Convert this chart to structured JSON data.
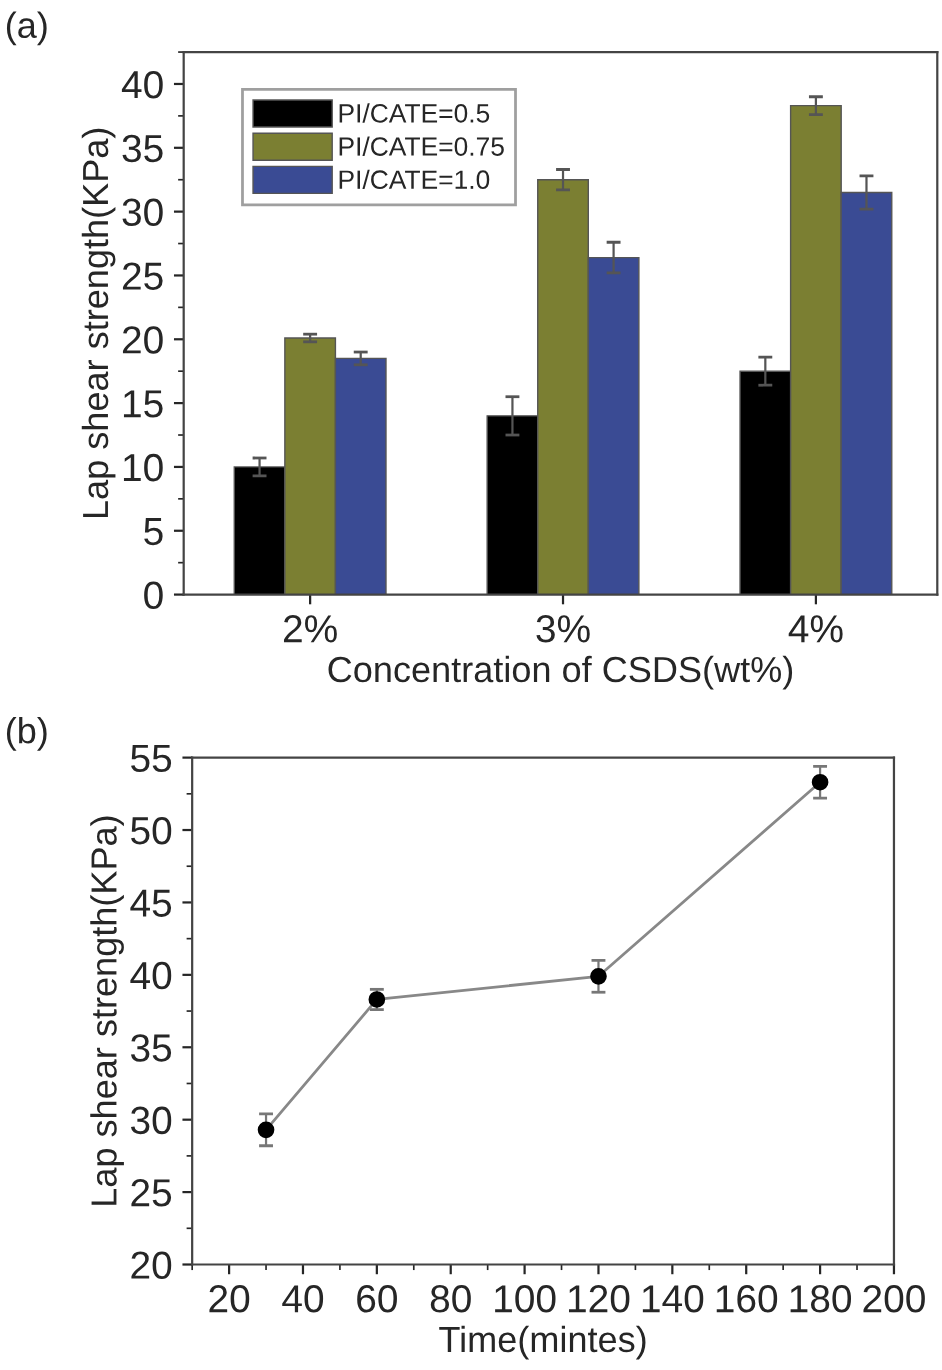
{
  "chart_data": [
    {
      "type": "bar",
      "xlabel": "Concentration of CSDS(wt%)",
      "ylabel": "Lap shear strength(KPa)",
      "annotations": [
        "(a)"
      ],
      "categories": [
        "2%",
        "3%",
        "4%"
      ],
      "series": [
        {
          "name": "PI/CATE=0.5",
          "color": "#000000",
          "values": [
            10,
            14,
            17.5
          ],
          "errors": [
            0.7,
            1.5,
            1.1
          ]
        },
        {
          "name": "PI/CATE=0.75",
          "color": "#7b7f32",
          "values": [
            20.1,
            32.5,
            38.3
          ],
          "errors": [
            0.3,
            0.8,
            0.7
          ]
        },
        {
          "name": "PI/CATE=1.0",
          "color": "#3a4b94",
          "values": [
            18.5,
            26.4,
            31.5
          ],
          "errors": [
            0.5,
            1.2,
            1.3
          ]
        }
      ],
      "ylim": [
        0,
        42.5
      ],
      "yticks": [
        0,
        5,
        10,
        15,
        20,
        25,
        30,
        35,
        40
      ],
      "legend": "top left",
      "grid": false
    },
    {
      "type": "line",
      "xlabel": "Time(mintes)",
      "ylabel": "Lap shear strength(KPa)",
      "annotations": [
        "(b)"
      ],
      "series": [
        {
          "color": "#888888",
          "x": [
            30,
            60,
            120,
            180
          ],
          "values": [
            29.3,
            38.3,
            39.9,
            53.3
          ],
          "errors": [
            1.1,
            0.7,
            1.1,
            1.1
          ]
        }
      ],
      "marker": "circle",
      "line_style": "solid",
      "xlim": [
        10,
        200
      ],
      "xticks": [
        20,
        40,
        60,
        80,
        100,
        120,
        140,
        160,
        180,
        200
      ],
      "ylim": [
        20,
        55
      ],
      "yticks": [
        20,
        25,
        30,
        35,
        40,
        45,
        50,
        55
      ],
      "grid": false
    }
  ]
}
